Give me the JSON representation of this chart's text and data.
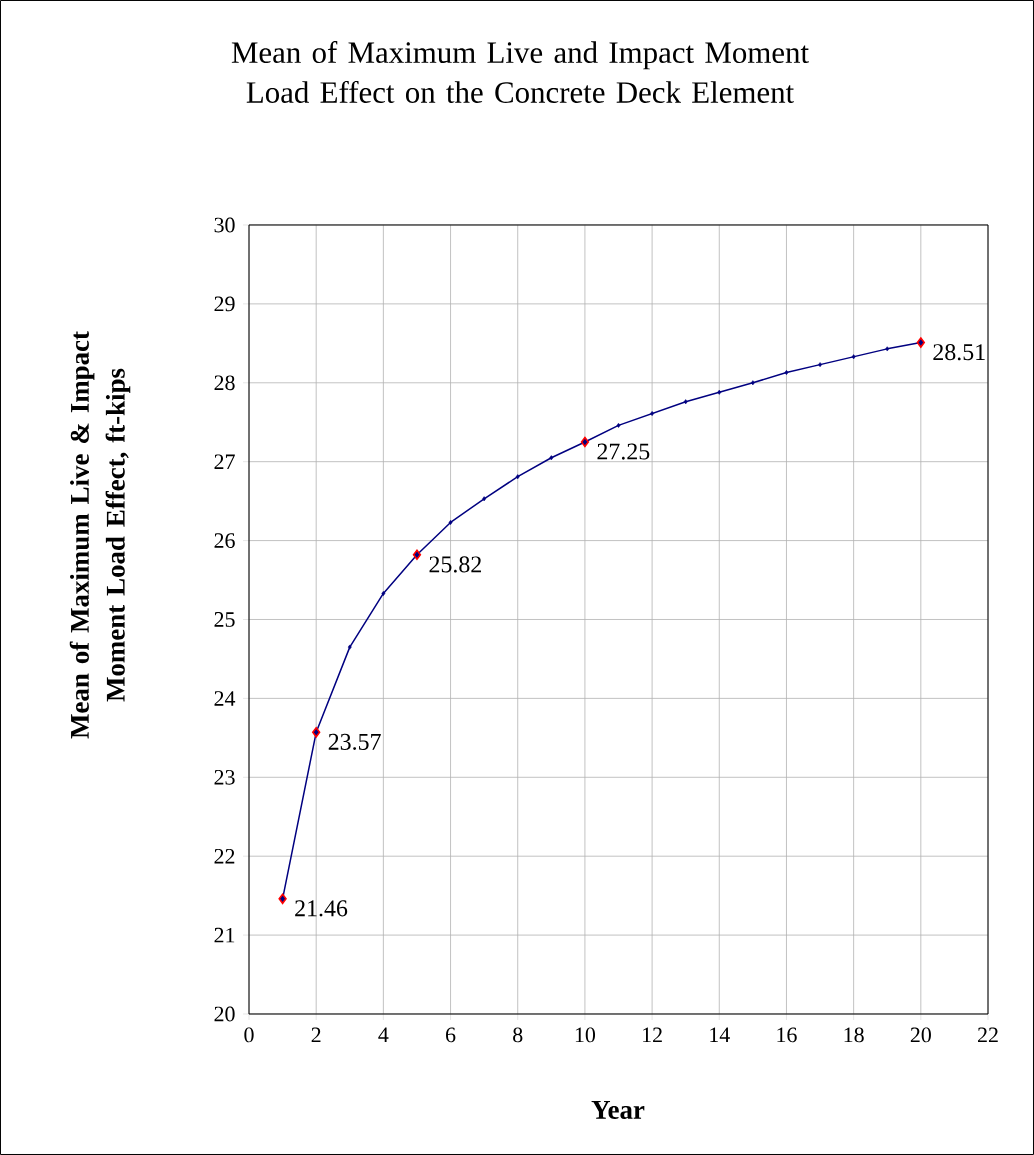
{
  "chart_data": {
    "type": "line",
    "title": "Mean of Maximum Live and Impact Moment Load Effect on the Concrete Deck Element",
    "xlabel": "Year",
    "ylabel": "Mean of Maximum Live & Impact Moment Load Effect, ft-kips",
    "x": [
      1,
      2,
      3,
      4,
      5,
      6,
      7,
      8,
      9,
      10,
      11,
      12,
      13,
      14,
      15,
      16,
      17,
      18,
      19,
      20
    ],
    "values": [
      21.46,
      23.57,
      24.65,
      25.33,
      25.82,
      26.23,
      26.53,
      26.81,
      27.05,
      27.25,
      27.46,
      27.61,
      27.76,
      27.88,
      28.0,
      28.13,
      28.23,
      28.33,
      28.43,
      28.51
    ],
    "value_labels": [
      "21.46",
      "23.57",
      null,
      null,
      "25.82",
      null,
      null,
      null,
      null,
      "27.25",
      null,
      null,
      null,
      null,
      null,
      null,
      null,
      null,
      null,
      "28.51"
    ],
    "color": "#000080",
    "colors": [
      "#ff0000",
      "#ff0000",
      "#000080",
      "#000080",
      "#ff0000",
      "#000080",
      "#000080",
      "#000080",
      "#000080",
      "#ff0000",
      "#000080",
      "#000080",
      "#000080",
      "#000080",
      "#000080",
      "#000080",
      "#000080",
      "#000080",
      "#000080",
      "#ff0000"
    ],
    "marker": "diamond",
    "line_style": "solid",
    "grid": true,
    "xlim": [
      0,
      22
    ],
    "xticks": [
      0,
      2,
      4,
      6,
      8,
      10,
      12,
      14,
      16,
      18,
      20,
      22
    ],
    "ylim": [
      20,
      30
    ],
    "yticks": [
      20,
      21,
      22,
      23,
      24,
      25,
      26,
      27,
      28,
      29,
      30
    ]
  }
}
